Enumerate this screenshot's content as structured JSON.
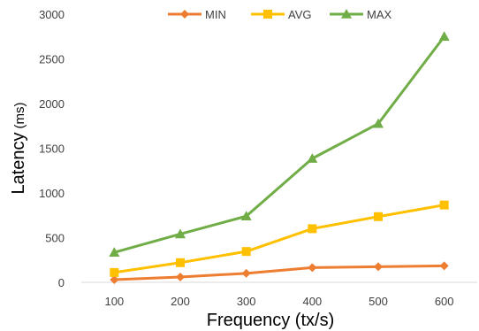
{
  "chart_data": {
    "type": "line",
    "title": "",
    "xlabel": "Frequency (tx/s)",
    "ylabel_main": "Latency",
    "ylabel_unit": "(ms)",
    "categories": [
      "100",
      "200",
      "300",
      "400",
      "500",
      "600"
    ],
    "ylim": [
      0,
      3000
    ],
    "yticks": [
      0,
      500,
      1000,
      1500,
      2000,
      2500,
      3000
    ],
    "grid": false,
    "legend_position": "top",
    "series": [
      {
        "name": "MIN",
        "color": "#ED7D31",
        "marker": "diamond",
        "values": [
          30,
          60,
          100,
          165,
          175,
          185
        ]
      },
      {
        "name": "AVG",
        "color": "#FFC000",
        "marker": "square",
        "values": [
          110,
          220,
          345,
          600,
          735,
          865
        ]
      },
      {
        "name": "MAX",
        "color": "#70AD47",
        "marker": "triangle",
        "values": [
          335,
          540,
          740,
          1385,
          1775,
          2750
        ]
      }
    ]
  }
}
